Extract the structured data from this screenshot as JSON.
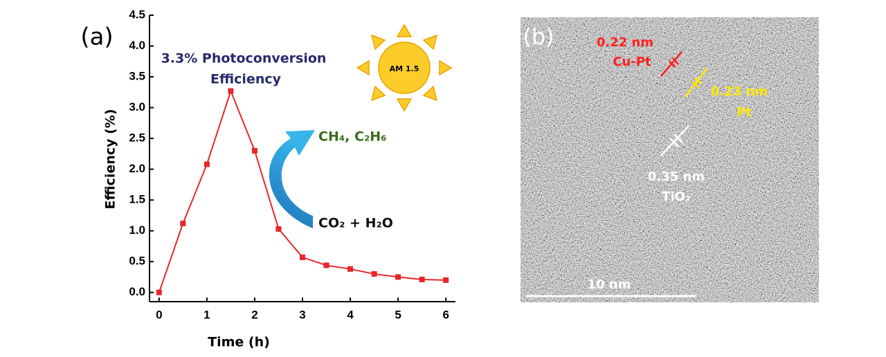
{
  "chart_data": {
    "type": "line",
    "panel_label": "(a)",
    "x_label": "Time (h)",
    "y_label": "Efficiency (%)",
    "x": [
      0,
      0.5,
      1,
      1.5,
      2,
      2.5,
      3,
      3.5,
      4,
      4.5,
      5,
      5.5,
      6
    ],
    "series": [
      {
        "name": "Efficiency",
        "color": "#e8262b",
        "values": [
          0,
          1.12,
          2.08,
          3.27,
          2.3,
          1.03,
          0.57,
          0.44,
          0.38,
          0.3,
          0.25,
          0.21,
          0.2
        ]
      }
    ],
    "xlim": [
      -0.2,
      6.2
    ],
    "xticks": [
      0,
      1,
      2,
      3,
      4,
      5,
      6
    ],
    "ylim": [
      -0.15,
      4.5
    ],
    "yticks": [
      {
        "value": 0,
        "label": "0.0"
      },
      0.5,
      {
        "value": 1,
        "label": "1.0"
      },
      1.5,
      {
        "value": 2,
        "label": "2.0"
      },
      2.5,
      {
        "value": 3,
        "label": "3.0"
      },
      3.5,
      {
        "value": 4,
        "label": "4.0"
      },
      4.5
    ],
    "annotations": {
      "peak_line1": "3.3% Photoconversion",
      "peak_line2": "Efficiency",
      "sun": "AM 1.5",
      "products": "CH₄, C₂H₆",
      "reactants": "CO₂ + H₂O"
    }
  },
  "image_panel": {
    "label": "(b)",
    "scale_bar": "10 nm",
    "annotations": {
      "cupt_spacing": "0.22 nm",
      "cupt_name": "Cu-Pt",
      "pt_spacing": "0.23 nm",
      "pt_name": "Pt",
      "tio2_spacing": "0.35 nm",
      "tio2_name": "TiO₂"
    }
  }
}
